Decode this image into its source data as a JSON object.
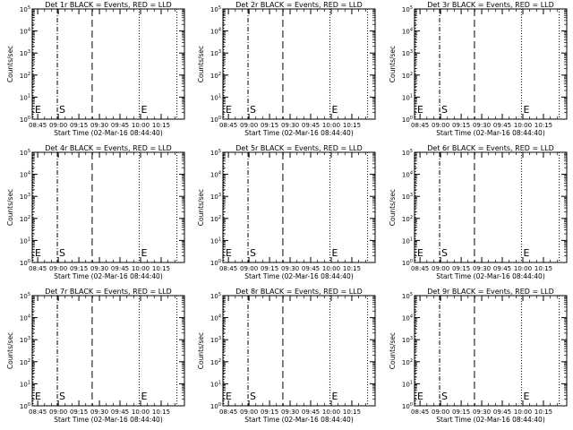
{
  "chart_data": [
    {
      "type": "line",
      "title": "Det 1r BLACK = Events, RED = LLD",
      "xlabel": "Start Time (02-Mar-16 08:44:40)",
      "ylabel": "Counts/sec"
    },
    {
      "type": "line",
      "title": "Det 2r BLACK = Events, RED = LLD",
      "xlabel": "Start Time (02-Mar-16 08:44:40)",
      "ylabel": "Counts/sec"
    },
    {
      "type": "line",
      "title": "Det 3r BLACK = Events, RED = LLD",
      "xlabel": "Start Time (02-Mar-16 08:44:40)",
      "ylabel": "Counts/sec"
    },
    {
      "type": "line",
      "title": "Det 4r BLACK = Events, RED = LLD",
      "xlabel": "Start Time (02-Mar-16 08:44:40)",
      "ylabel": "Counts/sec"
    },
    {
      "type": "line",
      "title": "Det 5r BLACK = Events, RED = LLD",
      "xlabel": "Start Time (02-Mar-16 08:44:40)",
      "ylabel": "Counts/sec"
    },
    {
      "type": "line",
      "title": "Det 6r BLACK = Events, RED = LLD",
      "xlabel": "Start Time (02-Mar-16 08:44:40)",
      "ylabel": "Counts/sec"
    },
    {
      "type": "line",
      "title": "Det 7r BLACK = Events, RED = LLD",
      "xlabel": "Start Time (02-Mar-16 08:44:40)",
      "ylabel": "Counts/sec"
    },
    {
      "type": "line",
      "title": "Det 8r BLACK = Events, RED = LLD",
      "xlabel": "Start Time (02-Mar-16 08:44:40)",
      "ylabel": "Counts/sec"
    },
    {
      "type": "line",
      "title": "Det 9r BLACK = Events, RED = LLD",
      "xlabel": "Start Time (02-Mar-16 08:44:40)",
      "ylabel": "Counts/sec"
    }
  ],
  "shared_axes": {
    "x_ticks": [
      "08:45",
      "09:00",
      "09:15",
      "09:30",
      "09:45",
      "10:00",
      "10:15"
    ],
    "x_tick_minutes": [
      0,
      15,
      30,
      45,
      60,
      75,
      90
    ],
    "x_range_minutes": [
      -4,
      107
    ],
    "y_scale": "log",
    "y_tick_exponents": [
      0,
      1,
      2,
      3,
      4,
      5
    ],
    "y_range_exponents": [
      0,
      5
    ]
  },
  "markers": [
    {
      "label": "E",
      "minute": -4.3,
      "style": "dotted"
    },
    {
      "label": "S",
      "minute": 14.3,
      "style": "dash-dot"
    },
    {
      "label": "",
      "minute": 39.7,
      "style": "dashed"
    },
    {
      "label": "E",
      "minute": 74.0,
      "style": "dotted"
    },
    {
      "label": "",
      "minute": 101.5,
      "style": "dotted"
    }
  ],
  "series": [],
  "colors": {
    "events": "#000000",
    "lld": "#ff0000"
  }
}
